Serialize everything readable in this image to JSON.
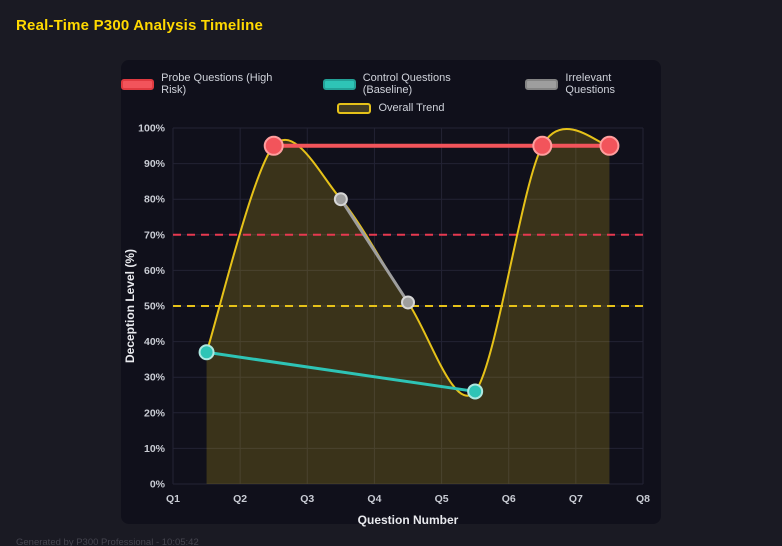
{
  "page": {
    "title": "Real-Time P300 Analysis Timeline",
    "footer": "Generated by P300 Professional - 10:05:42"
  },
  "colors": {
    "background": "#1a1a23",
    "panel": "#10101b",
    "title": "#ffd900",
    "grid": "#232334",
    "tick_text": "#c9ccd4",
    "axis_title_text": "#e9eaee"
  },
  "chart_data": {
    "type": "line",
    "title": "Real-Time P300 Analysis Timeline",
    "xlabel": "Question Number",
    "ylabel": "Deception Level (%)",
    "xlim": [
      1,
      8
    ],
    "ylim": [
      0,
      100
    ],
    "x_ticks": [
      "Q1",
      "Q2",
      "Q3",
      "Q4",
      "Q5",
      "Q6",
      "Q7",
      "Q8"
    ],
    "y_ticks": [
      "0%",
      "10%",
      "20%",
      "30%",
      "40%",
      "50%",
      "60%",
      "70%",
      "80%",
      "90%",
      "100%"
    ],
    "grid": true,
    "legend_position": "top",
    "series": [
      {
        "name": "Probe Questions (High Risk)",
        "color": "#f2545b",
        "swatch_fill": "#f2545b",
        "swatch_border": "#e03a40",
        "line_width": 4,
        "marker_radius": 9,
        "marker_fill": "#f2545b",
        "marker_stroke": "#ff9e9e",
        "points": [
          [
            2.5,
            95
          ],
          [
            6.5,
            95
          ],
          [
            7.5,
            95
          ]
        ]
      },
      {
        "name": "Control Questions (Baseline)",
        "color": "#2ec4b6",
        "swatch_fill": "#2ec4b6",
        "swatch_border": "#23a197",
        "line_width": 3,
        "marker_radius": 7,
        "marker_fill": "#2ec4b6",
        "marker_stroke": "#ade8e1",
        "points": [
          [
            1.5,
            37
          ],
          [
            5.5,
            26
          ]
        ]
      },
      {
        "name": "Irrelevant Questions",
        "color": "#9e9e9e",
        "swatch_fill": "#9e9e9e",
        "swatch_border": "#848484",
        "line_width": 3,
        "marker_radius": 6,
        "marker_fill": "#9e9e9e",
        "marker_stroke": "#d6d6d6",
        "points": [
          [
            3.5,
            80
          ],
          [
            4.5,
            51
          ]
        ]
      },
      {
        "name": "Overall Trend",
        "color": "#e6c219",
        "swatch_fill": "#433d22",
        "swatch_border": "#e6c219",
        "line_width": 2,
        "marker_radius": 0,
        "smooth": true,
        "fill": "rgba(230,194,25,0.20)",
        "points": [
          [
            1.5,
            37
          ],
          [
            2.5,
            95
          ],
          [
            3.5,
            80
          ],
          [
            4.5,
            51
          ],
          [
            5.5,
            26
          ],
          [
            6.5,
            95
          ],
          [
            7.5,
            95
          ]
        ]
      }
    ],
    "thresholds": [
      {
        "name": "probe-alert-threshold",
        "value": 70,
        "color": "#e63950",
        "dash": "8 6",
        "width": 2
      },
      {
        "name": "baseline-threshold",
        "value": 50,
        "color": "#e6c219",
        "dash": "8 6",
        "width": 2
      }
    ]
  }
}
